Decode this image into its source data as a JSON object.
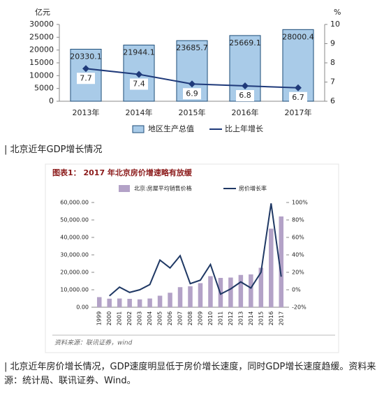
{
  "chart_data": [
    {
      "type": "bar",
      "ylabel": "亿元",
      "y2label": "%",
      "categories": [
        "2013年",
        "2014年",
        "2015年",
        "2016年",
        "2017年"
      ],
      "series": [
        {
          "name": "地区生产总值",
          "type": "bar",
          "color": "#a9cbe8",
          "values": [
            20330.1,
            21944.1,
            23685.7,
            25669.1,
            28000.4
          ]
        },
        {
          "name": "比上年增长",
          "type": "line",
          "axis": "y2",
          "color": "#1f3a7a",
          "values": [
            7.7,
            7.4,
            6.9,
            6.8,
            6.7
          ]
        }
      ],
      "ylim": [
        0,
        30000
      ],
      "yticks": [
        0,
        5000,
        10000,
        15000,
        20000,
        25000,
        30000
      ],
      "y2lim": [
        6,
        10
      ],
      "y2ticks": [
        6,
        7,
        8,
        9,
        10
      ],
      "grid": false,
      "show_values": true
    },
    {
      "type": "bar",
      "title": "图表1：  2017 年北京房价增速略有放缓",
      "source": "资料来源：联讯证券，wind",
      "categories": [
        "1999",
        "2000",
        "2001",
        "2002",
        "2003",
        "2004",
        "2005",
        "2006",
        "2007",
        "2008",
        "2009",
        "2010",
        "2011",
        "2012",
        "2013",
        "2014",
        "2015",
        "2016",
        "2017"
      ],
      "series": [
        {
          "name": "北京:房屋平均销售价格",
          "type": "bar",
          "color": "#b3a2c7",
          "values": [
            5800,
            4900,
            5000,
            4800,
            4500,
            5000,
            6600,
            8300,
            11500,
            12000,
            13800,
            17800,
            16800,
            17000,
            18500,
            18800,
            22600,
            45000,
            52000
          ]
        },
        {
          "name": "房价增长率",
          "type": "line",
          "axis": "y2",
          "color": "#1f3864",
          "values": [
            null,
            -7,
            3,
            -3,
            0,
            6,
            34,
            25,
            39,
            7,
            11,
            29,
            -5,
            1,
            9,
            2,
            20,
            99,
            15
          ]
        }
      ],
      "ylim": [
        0,
        60000
      ],
      "yticks": [
        {
          "value": 0,
          "label": "0.00"
        },
        {
          "value": 10000,
          "label": "10,000.00"
        },
        {
          "value": 20000,
          "label": "20,000.00"
        },
        {
          "value": 30000,
          "label": "30,000.00"
        },
        {
          "value": 40000,
          "label": "40,000.00"
        },
        {
          "value": 50000,
          "label": "50,000.00"
        },
        {
          "value": 60000,
          "label": "60,000.00"
        }
      ],
      "y2lim": [
        -20,
        100
      ],
      "y2ticks": [
        {
          "value": -20,
          "label": "-20%"
        },
        {
          "value": 0,
          "label": "0%"
        },
        {
          "value": 20,
          "label": "20%"
        },
        {
          "value": 40,
          "label": "40%"
        },
        {
          "value": 60,
          "label": "60%"
        },
        {
          "value": 80,
          "label": "80%"
        },
        {
          "value": 100,
          "label": "100%"
        }
      ],
      "grid": false,
      "show_values": false
    }
  ],
  "captions": [
    "| 北京近年GDP增长情况",
    "| 北京近年房价增长情况，GDP速度明显低于房价增长速度，同时GDP增长速度趋缓。资料来源：统计局、联讯证券、Wind。"
  ]
}
